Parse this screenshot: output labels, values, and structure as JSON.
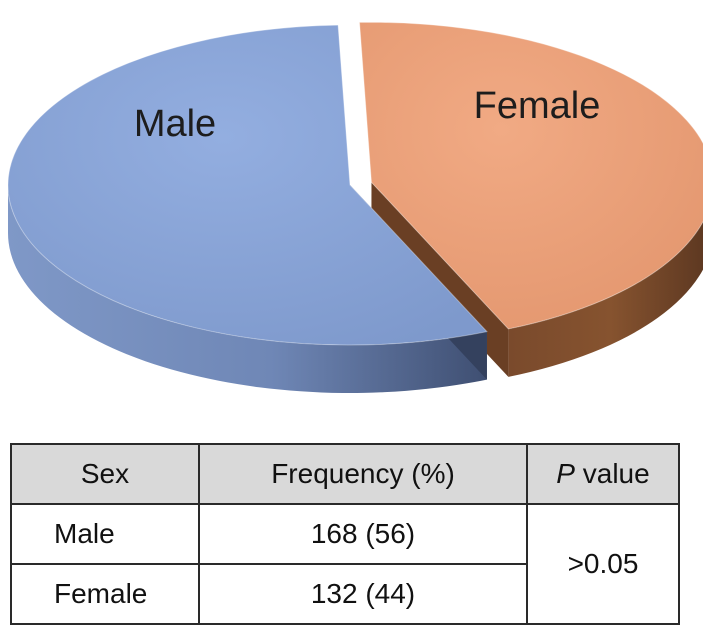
{
  "chart_data": {
    "type": "pie",
    "slices": [
      {
        "label": "Male",
        "value": 56,
        "color": "#8aa6d9"
      },
      {
        "label": "Female",
        "value": 44,
        "color": "#eda27b"
      }
    ],
    "legend": "none",
    "exploded": "Female"
  },
  "table": {
    "headers": {
      "sex": "Sex",
      "frequency": "Frequency (%)",
      "p_letter": "P",
      "p_rest": " value"
    },
    "rows": [
      {
        "sex": "Male",
        "frequency": "168 (56)"
      },
      {
        "sex": "Female",
        "frequency": "132 (44)"
      }
    ],
    "p_value": ">0.05"
  }
}
